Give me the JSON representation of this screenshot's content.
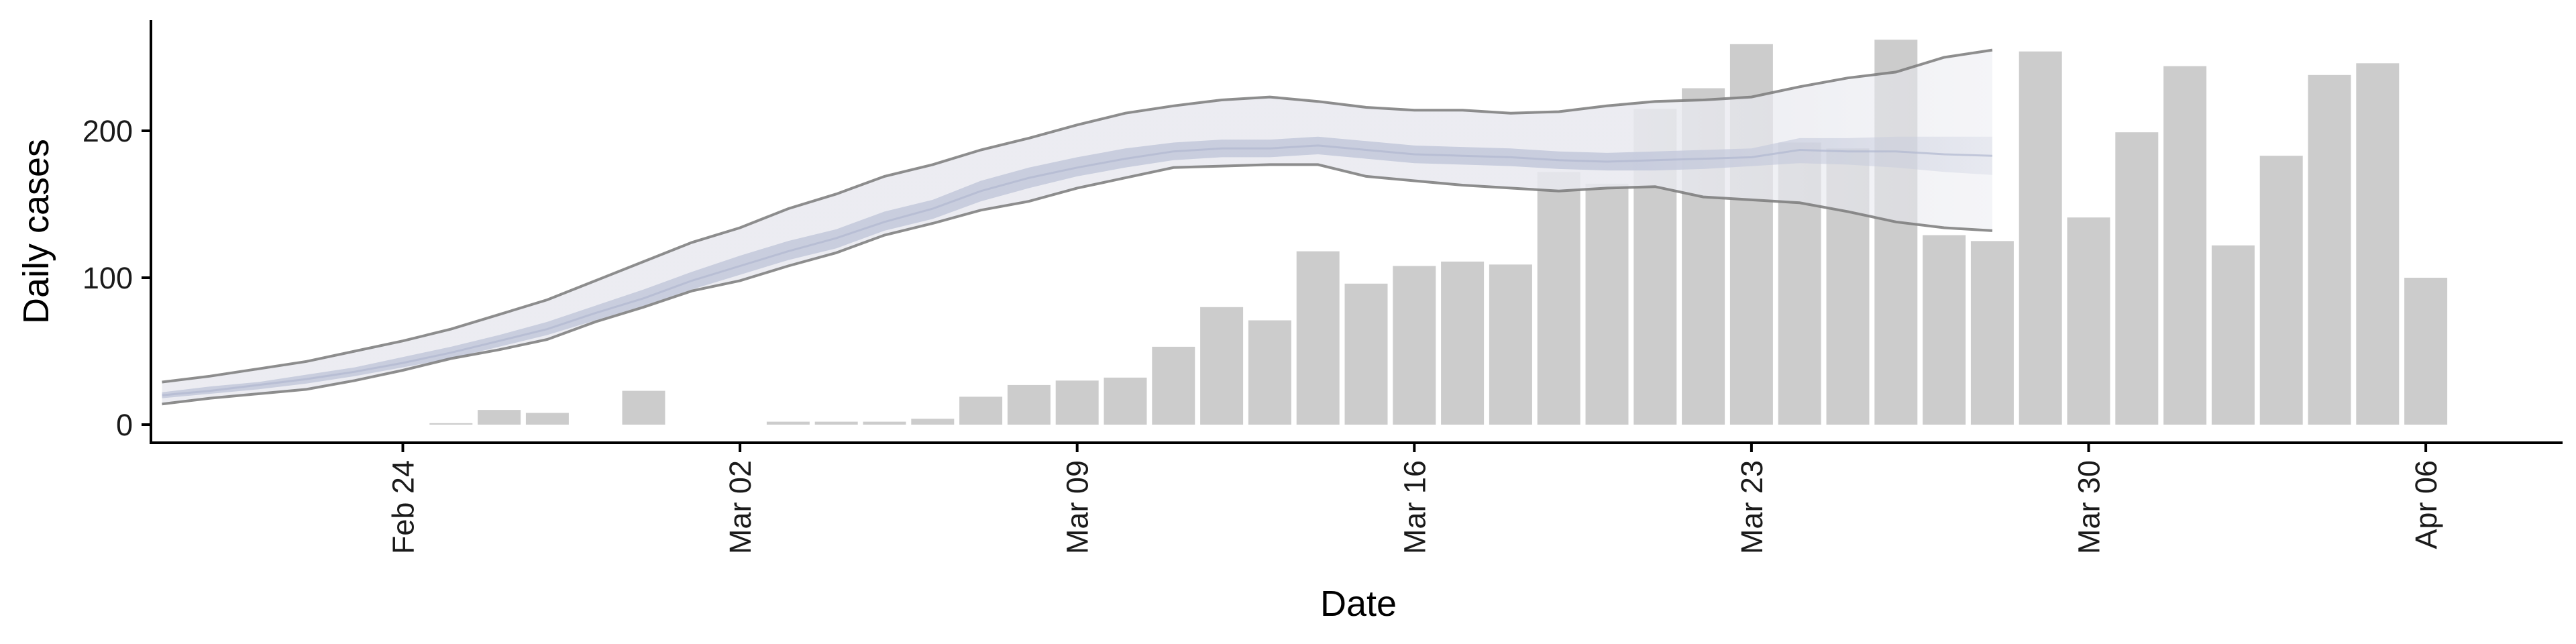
{
  "chart_data": {
    "type": "bar",
    "xlabel": "Date",
    "ylabel": "Daily cases",
    "x_ticks": [
      {
        "date": "2020-02-24",
        "label": "Feb 24"
      },
      {
        "date": "2020-03-02",
        "label": "Mar 02"
      },
      {
        "date": "2020-03-09",
        "label": "Mar 09"
      },
      {
        "date": "2020-03-16",
        "label": "Mar 16"
      },
      {
        "date": "2020-03-23",
        "label": "Mar 23"
      },
      {
        "date": "2020-03-30",
        "label": "Mar 30"
      },
      {
        "date": "2020-04-06",
        "label": "Apr 06"
      }
    ],
    "y_ticks": [
      {
        "value": 0,
        "label": "0"
      },
      {
        "value": 100,
        "label": "100"
      },
      {
        "value": 200,
        "label": "200"
      }
    ],
    "xlim": [
      "2020-02-18",
      "2020-04-08"
    ],
    "ylim": [
      -12,
      275
    ],
    "grid": false,
    "legend": "none",
    "bars": [
      {
        "date": "2020-02-25",
        "value": 1
      },
      {
        "date": "2020-02-26",
        "value": 10
      },
      {
        "date": "2020-02-27",
        "value": 8
      },
      {
        "date": "2020-02-29",
        "value": 23
      },
      {
        "date": "2020-03-03",
        "value": 2
      },
      {
        "date": "2020-03-04",
        "value": 2
      },
      {
        "date": "2020-03-05",
        "value": 2
      },
      {
        "date": "2020-03-06",
        "value": 4
      },
      {
        "date": "2020-03-07",
        "value": 19
      },
      {
        "date": "2020-03-08",
        "value": 27
      },
      {
        "date": "2020-03-09",
        "value": 30
      },
      {
        "date": "2020-03-10",
        "value": 32
      },
      {
        "date": "2020-03-11",
        "value": 53
      },
      {
        "date": "2020-03-12",
        "value": 80
      },
      {
        "date": "2020-03-13",
        "value": 71
      },
      {
        "date": "2020-03-14",
        "value": 118
      },
      {
        "date": "2020-03-15",
        "value": 96
      },
      {
        "date": "2020-03-16",
        "value": 108
      },
      {
        "date": "2020-03-17",
        "value": 111
      },
      {
        "date": "2020-03-18",
        "value": 109
      },
      {
        "date": "2020-03-19",
        "value": 172
      },
      {
        "date": "2020-03-20",
        "value": 164
      },
      {
        "date": "2020-03-21",
        "value": 215
      },
      {
        "date": "2020-03-22",
        "value": 229
      },
      {
        "date": "2020-03-23",
        "value": 259
      },
      {
        "date": "2020-03-24",
        "value": 192
      },
      {
        "date": "2020-03-25",
        "value": 188
      },
      {
        "date": "2020-03-26",
        "value": 262
      },
      {
        "date": "2020-03-27",
        "value": 129
      },
      {
        "date": "2020-03-28",
        "value": 125
      },
      {
        "date": "2020-03-29",
        "value": 254
      },
      {
        "date": "2020-03-30",
        "value": 141
      },
      {
        "date": "2020-03-31",
        "value": 199
      },
      {
        "date": "2020-04-01",
        "value": 244
      },
      {
        "date": "2020-04-02",
        "value": 122
      },
      {
        "date": "2020-04-03",
        "value": 183
      },
      {
        "date": "2020-04-04",
        "value": 238
      },
      {
        "date": "2020-04-05",
        "value": 246
      },
      {
        "date": "2020-04-06",
        "value": 100
      }
    ],
    "estimate": {
      "dates": [
        "2020-02-19",
        "2020-02-20",
        "2020-02-21",
        "2020-02-22",
        "2020-02-23",
        "2020-02-24",
        "2020-02-25",
        "2020-02-26",
        "2020-02-27",
        "2020-02-28",
        "2020-02-29",
        "2020-03-01",
        "2020-03-02",
        "2020-03-03",
        "2020-03-04",
        "2020-03-05",
        "2020-03-06",
        "2020-03-07",
        "2020-03-08",
        "2020-03-09",
        "2020-03-10",
        "2020-03-11",
        "2020-03-12",
        "2020-03-13",
        "2020-03-14",
        "2020-03-15",
        "2020-03-16",
        "2020-03-17",
        "2020-03-18",
        "2020-03-19",
        "2020-03-20",
        "2020-03-21",
        "2020-03-22",
        "2020-03-23",
        "2020-03-24",
        "2020-03-25",
        "2020-03-26",
        "2020-03-27",
        "2020-03-28"
      ],
      "outer_upper": [
        29,
        33,
        38,
        43,
        50,
        57,
        65,
        75,
        85,
        98,
        111,
        124,
        134,
        147,
        157,
        169,
        177,
        187,
        195,
        204,
        212,
        217,
        221,
        223,
        220,
        216,
        214,
        214,
        212,
        213,
        217,
        220,
        221,
        223,
        230,
        236,
        240,
        250,
        255
      ],
      "outer_lower": [
        14,
        18,
        21,
        24,
        30,
        37,
        45,
        51,
        58,
        70,
        80,
        91,
        98,
        108,
        117,
        129,
        137,
        146,
        152,
        161,
        168,
        175,
        176,
        177,
        177,
        169,
        166,
        163,
        161,
        159,
        161,
        162,
        155,
        153,
        151,
        145,
        138,
        134,
        132
      ],
      "inner_upper": [
        22,
        26,
        29,
        34,
        39,
        46,
        53,
        61,
        70,
        81,
        92,
        104,
        115,
        125,
        133,
        145,
        153,
        166,
        175,
        182,
        188,
        192,
        194,
        194,
        196,
        193,
        190,
        189,
        188,
        186,
        185,
        186,
        187,
        188,
        195,
        195,
        196,
        196,
        196
      ],
      "inner_lower": [
        18,
        21,
        24,
        28,
        33,
        39,
        45,
        53,
        61,
        71,
        81,
        92,
        102,
        112,
        120,
        132,
        140,
        152,
        161,
        169,
        175,
        180,
        182,
        182,
        184,
        181,
        178,
        177,
        176,
        174,
        173,
        173,
        174,
        176,
        178,
        177,
        175,
        172,
        170
      ],
      "median": [
        20,
        23,
        27,
        31,
        36,
        42,
        49,
        57,
        65,
        76,
        86,
        98,
        108,
        118,
        127,
        138,
        147,
        159,
        168,
        175,
        181,
        186,
        188,
        188,
        190,
        187,
        184,
        183,
        182,
        180,
        179,
        180,
        181,
        182,
        187,
        186,
        186,
        184,
        183
      ]
    },
    "colors": {
      "bars": "#cccccc",
      "outer_band": "#e8e9ef",
      "inner_band": "#c5cadc",
      "median": "#b0b8d0",
      "bound_line": "#7a7a7a",
      "axis": "#000000",
      "tick_text": "#1a1a1a"
    }
  }
}
